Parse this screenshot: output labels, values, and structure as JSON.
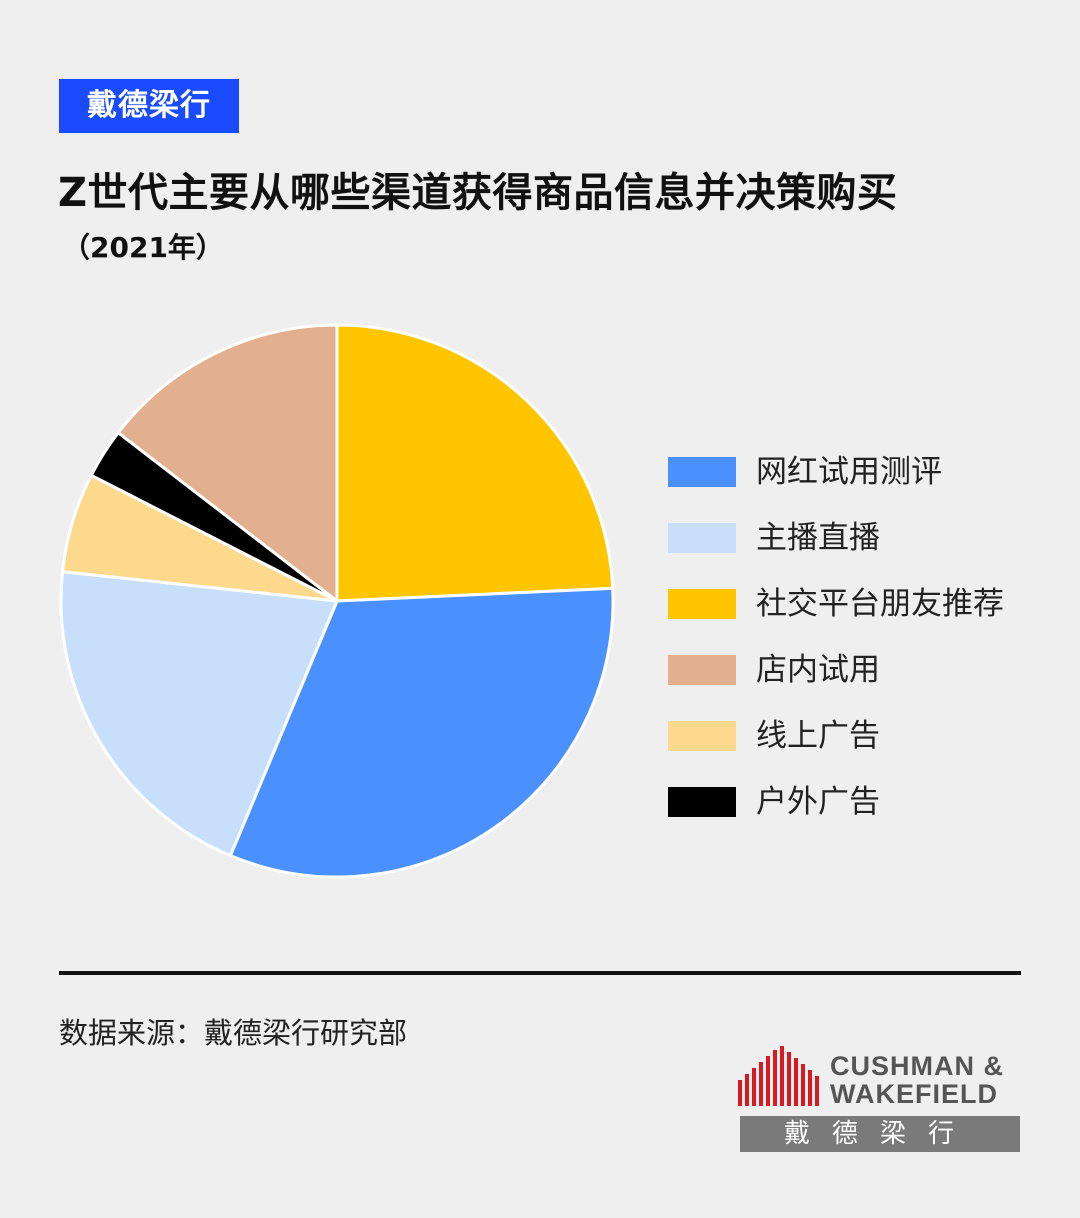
{
  "brand_tag": "戴德梁行",
  "title": "Z世代主要从哪些渠道获得商品信息并决策购买",
  "subtitle": "（2021年）",
  "source": "数据来源：戴德梁行研究部",
  "logo": {
    "line1": "CUSHMAN &",
    "line2": "WAKEFIELD",
    "chinese": "戴德梁行"
  },
  "colors": {
    "brand_tag": "#1a4bff",
    "background": "#efefef"
  },
  "chart_data": {
    "type": "pie",
    "title": "Z世代主要从哪些渠道获得商品信息并决策购买",
    "legend_position": "right",
    "slices": [
      {
        "label": "网红试用测评",
        "value": 33,
        "color": "#4a90ff"
      },
      {
        "label": "主播直播",
        "value": 21,
        "color": "#c8dffc"
      },
      {
        "label": "社交平台朋友推荐",
        "value": 25,
        "color": "#ffc600"
      },
      {
        "label": "店内试用",
        "value": 15,
        "color": "#e2b08e"
      },
      {
        "label": "线上广告",
        "value": 6,
        "color": "#fcd98c"
      },
      {
        "label": "户外广告",
        "value": 3,
        "color": "#000000"
      }
    ]
  }
}
